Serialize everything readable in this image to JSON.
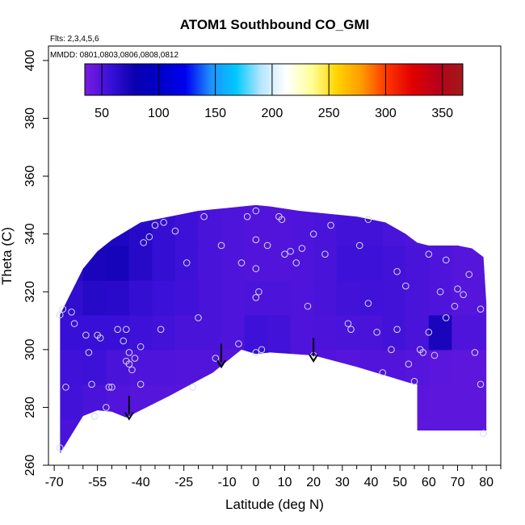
{
  "chart_data": {
    "type": "heatmap",
    "title": "ATOM1 Southbound CO_GMI",
    "annotations": {
      "flights": "Flts: 2,3,4,5,6",
      "dates": "MMDD: 0801,0803,0806,0808,0812"
    },
    "xlabel": "Latitude (deg N)",
    "ylabel": "Theta (C)",
    "xlim": [
      -72,
      85
    ],
    "ylim": [
      260,
      405
    ],
    "x_ticks": [
      -70,
      -55,
      -40,
      -25,
      -10,
      0,
      10,
      20,
      30,
      40,
      50,
      60,
      70,
      80
    ],
    "x_tick_labels": [
      "-70",
      "-55",
      "-40",
      "-25",
      "-10",
      "0",
      "10",
      "20",
      "30",
      "40",
      "50",
      "60",
      "70",
      "80"
    ],
    "x_minor_ticks": [
      -65,
      -60,
      -50,
      -45,
      -35,
      -30,
      -20,
      -15,
      -5,
      5,
      15,
      25,
      35,
      45,
      55,
      65,
      75,
      85
    ],
    "y_ticks": [
      260,
      280,
      300,
      320,
      340,
      360,
      380,
      400
    ],
    "y_tick_labels": [
      "260",
      "280",
      "300",
      "320",
      "340",
      "360",
      "380",
      "400"
    ],
    "colorbar": {
      "range": [
        35,
        368
      ],
      "ticks": [
        50,
        100,
        150,
        200,
        250,
        300,
        350
      ],
      "tick_labels": [
        "50",
        "100",
        "150",
        "200",
        "250",
        "300",
        "350"
      ],
      "colors": [
        "#7a1be0",
        "#3a10d8",
        "#0a00b0",
        "#0000c8",
        "#0000f0",
        "#1e90ff",
        "#00c8ff",
        "#b8e6ff",
        "#ffffff",
        "#ffff99",
        "#ffd400",
        "#ff9900",
        "#ff3300",
        "#e00000",
        "#b8001a",
        "#a01a1a"
      ]
    },
    "colormap_domain": [
      35,
      368
    ],
    "field": {
      "lat_edges": [
        -68,
        -60,
        -52,
        -44,
        -36,
        -28,
        -20,
        -12,
        -4,
        4,
        12,
        20,
        28,
        36,
        44,
        52,
        60,
        68,
        80
      ],
      "theta_edges": [
        264,
        276,
        288,
        300,
        312,
        324,
        336,
        352
      ],
      "values": [
        [
          52,
          50,
          48,
          47,
          48,
          47,
          46,
          46,
          48,
          47,
          46,
          46,
          46,
          46,
          46,
          45,
          45,
          45
        ],
        [
          54,
          52,
          49,
          48,
          48,
          47,
          46,
          46,
          49,
          48,
          46,
          46,
          46,
          47,
          47,
          46,
          45,
          45
        ],
        [
          55,
          56,
          52,
          50,
          50,
          49,
          49,
          48,
          60,
          56,
          50,
          49,
          48,
          49,
          49,
          48,
          46,
          45
        ],
        [
          58,
          58,
          58,
          56,
          54,
          52,
          52,
          50,
          56,
          54,
          50,
          51,
          52,
          52,
          54,
          52,
          72,
          50
        ],
        [
          62,
          66,
          65,
          60,
          57,
          55,
          52,
          50,
          51,
          51,
          50,
          52,
          54,
          55,
          54,
          52,
          50,
          48
        ],
        [
          66,
          72,
          74,
          66,
          60,
          56,
          52,
          50,
          49,
          49,
          50,
          52,
          56,
          56,
          54,
          52,
          50,
          48
        ],
        [
          60,
          66,
          70,
          66,
          60,
          56,
          52,
          50,
          49,
          49,
          50,
          52,
          54,
          54,
          52,
          50,
          49,
          48
        ]
      ]
    },
    "outline": {
      "upper": [
        [
          -68,
          312
        ],
        [
          -65,
          318
        ],
        [
          -60,
          328
        ],
        [
          -55,
          334
        ],
        [
          -50,
          338
        ],
        [
          -45,
          341
        ],
        [
          -40,
          344
        ],
        [
          -35,
          345
        ],
        [
          -25,
          347
        ],
        [
          -20,
          348
        ],
        [
          -10,
          349
        ],
        [
          0,
          350
        ],
        [
          5,
          349.5
        ],
        [
          15,
          348
        ],
        [
          25,
          347
        ],
        [
          35,
          346
        ],
        [
          45,
          344
        ],
        [
          52,
          340
        ],
        [
          56,
          337
        ],
        [
          60,
          336
        ],
        [
          70,
          336
        ],
        [
          75,
          335
        ],
        [
          79,
          332
        ],
        [
          80,
          316
        ],
        [
          80,
          272
        ]
      ],
      "lower": [
        [
          -68,
          264
        ],
        [
          -60,
          277
        ],
        [
          -55,
          279
        ],
        [
          -50,
          278.5
        ],
        [
          -45,
          276.5
        ],
        [
          -30,
          284
        ],
        [
          -15,
          292
        ],
        [
          -5,
          300
        ],
        [
          0,
          298.5
        ],
        [
          5,
          299
        ],
        [
          20,
          298
        ],
        [
          35,
          294
        ],
        [
          45,
          291
        ],
        [
          55,
          288
        ],
        [
          56,
          288
        ],
        [
          56,
          272
        ],
        [
          80,
          272
        ]
      ]
    },
    "series": [
      {
        "name": "sample points",
        "x": [
          -68,
          -67,
          -66,
          -63,
          -59,
          -57,
          -56,
          -55,
          -54,
          -52,
          -50,
          -48,
          -46,
          -45,
          -44,
          -43,
          -42,
          -40,
          -39,
          -37,
          -35,
          -32,
          -28,
          -24,
          -20,
          -18,
          -14,
          -12,
          -6,
          -5,
          -3,
          0,
          0,
          0,
          1,
          4,
          9,
          12,
          14,
          16,
          18,
          20,
          26,
          32,
          36,
          39,
          42,
          44,
          47,
          49,
          53,
          55,
          58,
          60,
          64,
          66,
          69,
          72,
          76,
          78,
          79,
          -68,
          -64,
          -44,
          -33,
          0,
          0,
          2,
          8,
          10,
          20,
          24,
          49,
          70,
          -58,
          -51,
          -45,
          -40,
          -22,
          33,
          39,
          52,
          57,
          60,
          62,
          66,
          74,
          78
        ],
        "y": [
          312,
          314,
          287,
          309,
          305,
          288,
          277,
          305,
          304,
          280,
          287,
          307,
          303,
          307,
          299,
          293,
          297,
          301,
          337,
          339,
          343,
          344,
          341,
          330,
          311,
          346,
          297,
          336,
          302,
          330,
          346,
          348,
          338,
          328,
          320,
          336,
          345,
          334,
          330,
          335,
          315,
          340,
          343,
          309,
          336,
          345,
          306,
          292,
          300,
          307,
          295,
          289,
          299,
          306,
          320,
          311,
          315,
          319,
          299,
          288,
          271,
          266,
          313,
          295,
          307,
          318,
          299,
          300,
          346,
          333,
          298,
          333,
          327,
          321,
          299,
          287,
          296,
          288,
          287,
          307,
          316,
          322,
          300,
          333,
          298,
          331,
          326,
          314
        ]
      }
    ]
  }
}
